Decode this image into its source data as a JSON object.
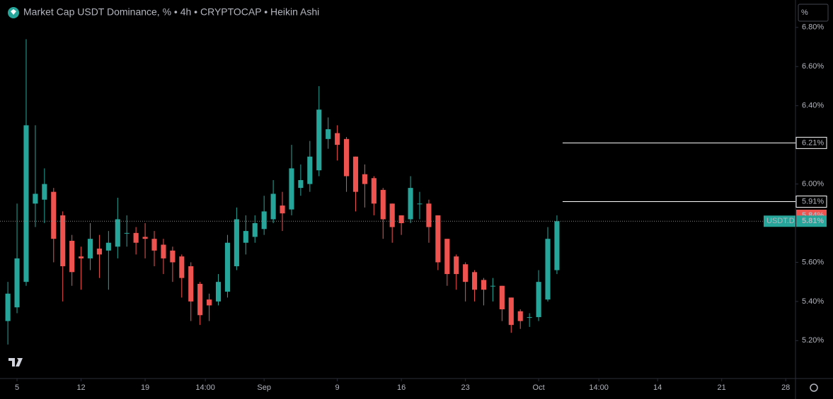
{
  "chart_data": {
    "type": "candlestick",
    "title": "Market Cap USDT Dominance, % • 4h • CRYPTOCAP • Heikin Ashi",
    "unit_button": "%",
    "up_color": "#26a69a",
    "down_color": "#ef5350",
    "x": [
      -1,
      0,
      1,
      2,
      3,
      4,
      5,
      6,
      7,
      8,
      9,
      10,
      11,
      12,
      13,
      14,
      15,
      16,
      17,
      18,
      19,
      20,
      21,
      22,
      23,
      24,
      25,
      26,
      27,
      28,
      29,
      30,
      31,
      32,
      33,
      34,
      35,
      36,
      37,
      38,
      39,
      40,
      41,
      42,
      43,
      44,
      45,
      46,
      47,
      48,
      49,
      50,
      51,
      52,
      53,
      54,
      55,
      56,
      57,
      58,
      59
    ],
    "open": [
      5.3,
      5.37,
      5.5,
      5.9,
      5.92,
      5.96,
      5.84,
      5.71,
      5.63,
      5.62,
      5.67,
      5.66,
      5.68,
      5.75,
      5.75,
      5.73,
      5.72,
      5.69,
      5.66,
      5.63,
      5.58,
      5.49,
      5.41,
      5.4,
      5.45,
      5.58,
      5.7,
      5.73,
      5.77,
      5.82,
      5.89,
      5.87,
      5.98,
      6.0,
      6.07,
      6.23,
      6.26,
      6.23,
      6.14,
      6.05,
      6.03,
      5.97,
      5.9,
      5.84,
      5.82,
      5.9,
      5.9,
      5.84,
      5.72,
      5.63,
      5.59,
      5.55,
      5.51,
      5.48,
      5.48,
      5.42,
      5.35,
      5.32,
      5.32,
      5.41,
      5.56
    ],
    "high": [
      5.5,
      5.9,
      6.74,
      6.3,
      6.08,
      5.98,
      5.86,
      5.74,
      5.68,
      5.8,
      5.74,
      5.76,
      5.93,
      5.84,
      5.78,
      5.8,
      5.76,
      5.72,
      5.68,
      5.64,
      5.6,
      5.5,
      5.44,
      5.54,
      5.74,
      5.88,
      5.84,
      5.84,
      5.94,
      6.02,
      5.96,
      6.2,
      6.1,
      6.22,
      6.5,
      6.34,
      6.3,
      6.24,
      6.14,
      6.1,
      6.04,
      5.98,
      5.9,
      5.84,
      6.04,
      5.96,
      5.92,
      5.84,
      5.72,
      5.64,
      5.6,
      5.56,
      5.52,
      5.52,
      5.48,
      5.42,
      5.36,
      5.34,
      5.56,
      5.78,
      5.84
    ],
    "low": [
      5.18,
      5.34,
      5.48,
      5.78,
      5.8,
      5.6,
      5.4,
      5.48,
      5.46,
      5.56,
      5.52,
      5.46,
      5.62,
      5.68,
      5.64,
      5.62,
      5.58,
      5.54,
      5.5,
      5.42,
      5.3,
      5.28,
      5.3,
      5.38,
      5.42,
      5.56,
      5.64,
      5.7,
      5.74,
      5.8,
      5.76,
      5.84,
      5.94,
      5.96,
      6.04,
      6.18,
      6.12,
      5.96,
      5.86,
      5.88,
      5.84,
      5.72,
      5.7,
      5.74,
      5.8,
      5.82,
      5.7,
      5.56,
      5.48,
      5.46,
      5.4,
      5.4,
      5.38,
      5.4,
      5.3,
      5.24,
      5.26,
      5.27,
      5.3,
      5.4,
      5.54
    ],
    "close": [
      5.44,
      5.62,
      6.3,
      5.95,
      6.0,
      5.72,
      5.58,
      5.55,
      5.62,
      5.72,
      5.64,
      5.7,
      5.82,
      5.75,
      5.7,
      5.72,
      5.66,
      5.62,
      5.6,
      5.52,
      5.4,
      5.33,
      5.38,
      5.5,
      5.7,
      5.82,
      5.76,
      5.8,
      5.86,
      5.95,
      5.85,
      6.08,
      6.02,
      6.14,
      6.38,
      6.28,
      6.2,
      6.04,
      5.96,
      6.0,
      5.9,
      5.82,
      5.78,
      5.8,
      5.98,
      5.9,
      5.78,
      5.6,
      5.54,
      5.54,
      5.5,
      5.46,
      5.46,
      5.48,
      5.36,
      5.28,
      5.3,
      5.32,
      5.5,
      5.72,
      5.81
    ],
    "xlim": [
      -1.86,
      84.99
    ],
    "xticks": [
      {
        "value": 0,
        "label": "5"
      },
      {
        "value": 7,
        "label": "12"
      },
      {
        "value": 14,
        "label": "19"
      },
      {
        "value": 20.58,
        "label": "14:00"
      },
      {
        "value": 27,
        "label": "Sep"
      },
      {
        "value": 35,
        "label": "9"
      },
      {
        "value": 42,
        "label": "16"
      },
      {
        "value": 49,
        "label": "23"
      },
      {
        "value": 57,
        "label": "Oct"
      },
      {
        "value": 63.58,
        "label": "14:00"
      },
      {
        "value": 70,
        "label": "14"
      },
      {
        "value": 77,
        "label": "21"
      },
      {
        "value": 84,
        "label": "28"
      }
    ],
    "ylim": [
      5.01,
      6.94
    ],
    "yticks": [
      {
        "value": 5.2,
        "label": "5.20%"
      },
      {
        "value": 5.4,
        "label": "5.40%"
      },
      {
        "value": 5.6,
        "label": "5.60%"
      },
      {
        "value": 5.8,
        "label": "5.80%"
      },
      {
        "value": 6.0,
        "label": "6.00%"
      },
      {
        "value": 6.2,
        "label": "6.20%"
      },
      {
        "value": 6.4,
        "label": "6.40%"
      },
      {
        "value": 6.6,
        "label": "6.60%"
      },
      {
        "value": 6.8,
        "label": "6.80%"
      }
    ],
    "hlines": [
      {
        "value": 6.21,
        "label": "6.21%"
      },
      {
        "value": 5.91,
        "label": "5.91%"
      }
    ],
    "marker": {
      "value": 5.84,
      "label": "5.84%"
    },
    "last": {
      "name": "USDT.D",
      "value": 5.81,
      "label": "5.81%"
    }
  }
}
